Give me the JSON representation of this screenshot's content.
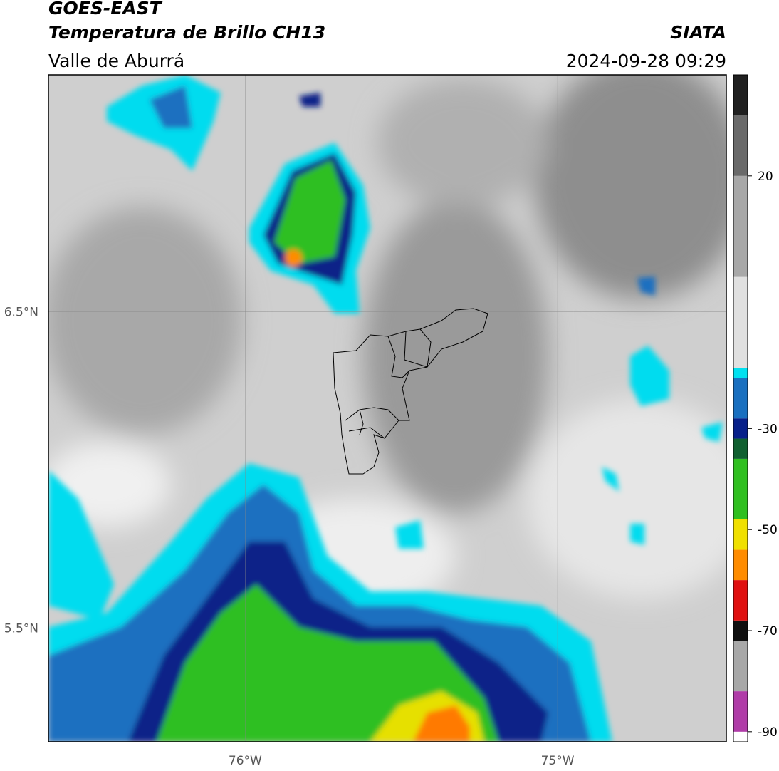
{
  "header": {
    "title": "GOES-EAST",
    "subtitle": "Temperatura de Brillo CH13",
    "source": "SIATA",
    "region": "Valle de Aburrá",
    "timestamp": "2024-09-28 09:29"
  },
  "map": {
    "lon_lim": [
      -76.63,
      -74.46
    ],
    "lat_lim": [
      5.14,
      7.25
    ],
    "lon_ticks": [
      {
        "value": -76,
        "label": "76°W"
      },
      {
        "value": -75,
        "label": "75°W"
      }
    ],
    "lat_ticks": [
      {
        "value": 6.5,
        "label": "6.5°N"
      },
      {
        "value": 5.5,
        "label": "5.5°N"
      }
    ],
    "grid": true
  },
  "colorbar": {
    "lim": [
      -92,
      40
    ],
    "ticks": [
      20,
      -30,
      -50,
      -70,
      -90
    ],
    "segments": [
      {
        "from": -92,
        "to": -90,
        "color": "#ffffff"
      },
      {
        "from": -90,
        "to": -82,
        "color": "#b03ca8"
      },
      {
        "from": -82,
        "to": -72,
        "color": "#a8a8a8"
      },
      {
        "from": -72,
        "to": -68,
        "color": "#101010"
      },
      {
        "from": -68,
        "to": -60,
        "color": "#e01010"
      },
      {
        "from": -60,
        "to": -54,
        "color": "#ff8c00"
      },
      {
        "from": -54,
        "to": -48,
        "color": "#f0e000"
      },
      {
        "from": -48,
        "to": -36,
        "color": "#30c020"
      },
      {
        "from": -36,
        "to": -32,
        "color": "#106030"
      },
      {
        "from": -32,
        "to": -28,
        "color": "#08208a"
      },
      {
        "from": -28,
        "to": -20,
        "color": "#1a70c0"
      },
      {
        "from": -20,
        "to": -18,
        "color": "#00e0f0"
      },
      {
        "from": -18,
        "to": 0,
        "color": "#e0e0e0"
      },
      {
        "from": 0,
        "to": 20,
        "color": "#a8a8a8"
      },
      {
        "from": 20,
        "to": 32,
        "color": "#6a6a6a"
      },
      {
        "from": 32,
        "to": 40,
        "color": "#202020"
      }
    ]
  }
}
